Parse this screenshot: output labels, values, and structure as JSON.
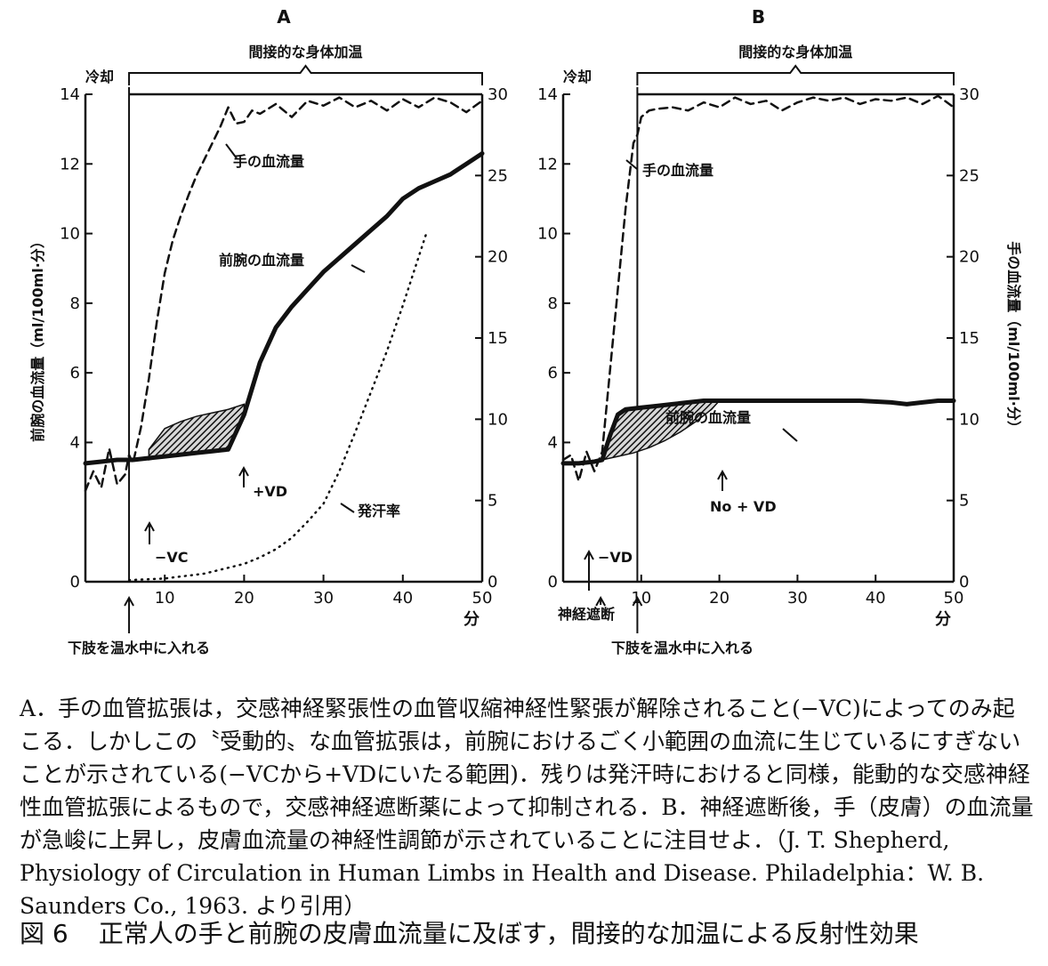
{
  "chart_data": [
    {
      "type": "line",
      "panel_label": "A",
      "xlabel": "分",
      "ylabel_left": "前腕の血流量（ml/100ml·分）",
      "xlim": [
        0,
        50
      ],
      "ylim_left": [
        0,
        14
      ],
      "ylim_right": [
        0,
        30
      ],
      "x_ticks": [
        10,
        20,
        30,
        40,
        50
      ],
      "y_ticks_left": [
        0,
        4,
        6,
        8,
        10,
        12,
        14
      ],
      "y_ticks_right": [
        0,
        5,
        10,
        15,
        20,
        25,
        30
      ],
      "grid": false,
      "top_annotations": {
        "cooling": "冷却",
        "heating": "間接的な身体加温"
      },
      "bottom_annotation": "下肢を温水中に入れる",
      "event_x": 5.5,
      "series": [
        {
          "name": "手の血流量",
          "axis": "right",
          "style": "dashed",
          "x": [
            0,
            1,
            2,
            3,
            4,
            5,
            5.5,
            6,
            7,
            8,
            9,
            10,
            11,
            12,
            13,
            14,
            15,
            16,
            17,
            18,
            19,
            20,
            21,
            22,
            24,
            26,
            28,
            30,
            32,
            34,
            36,
            38,
            40,
            42,
            44,
            46,
            48,
            50
          ],
          "y": [
            5.6,
            6.8,
            5.8,
            8.2,
            6.0,
            6.6,
            7.8,
            7.3,
            9.5,
            12.5,
            16,
            19,
            21,
            22.5,
            23.8,
            25,
            26,
            27,
            28,
            29.2,
            28.2,
            28.3,
            29,
            28.8,
            29.4,
            28.6,
            29.6,
            29.3,
            29.8,
            29.2,
            29.6,
            29.0,
            29.7,
            29.2,
            29.8,
            29.5,
            28.9,
            29.6
          ]
        },
        {
          "name": "前腕の血流量",
          "axis": "left",
          "style": "solid",
          "x": [
            0,
            2,
            4,
            6,
            8,
            10,
            12,
            14,
            16,
            18,
            20,
            22,
            24,
            26,
            28,
            30,
            32,
            34,
            36,
            38,
            40,
            42,
            44,
            46,
            48,
            50
          ],
          "y": [
            3.4,
            3.45,
            3.5,
            3.5,
            3.55,
            3.6,
            3.65,
            3.7,
            3.75,
            3.8,
            4.8,
            6.3,
            7.3,
            7.9,
            8.4,
            8.9,
            9.3,
            9.7,
            10.1,
            10.5,
            11.0,
            11.3,
            11.5,
            11.7,
            12.0,
            12.3
          ]
        },
        {
          "name": "発汗率",
          "axis": "right",
          "style": "dotted",
          "x": [
            5.5,
            10,
            15,
            20,
            22,
            24,
            26,
            28,
            30,
            32,
            34,
            36,
            38,
            40,
            42,
            43
          ],
          "y": [
            0.1,
            0.2,
            0.5,
            1.1,
            1.5,
            2.0,
            2.7,
            3.7,
            4.8,
            6.8,
            9.2,
            11.7,
            14.2,
            17,
            20,
            21.5
          ]
        }
      ],
      "shaded_band": {
        "label_start": "−VC",
        "label_end": "+VD",
        "x": [
          8,
          10,
          12,
          14,
          16,
          18,
          20
        ],
        "upper": [
          3.8,
          4.4,
          4.6,
          4.75,
          4.85,
          4.95,
          5.1
        ],
        "lower": [
          3.5,
          3.6,
          3.65,
          3.7,
          3.75,
          3.8,
          4.8
        ]
      },
      "annotations": [
        {
          "text": "手の血流量"
        },
        {
          "text": "前腕の血流量"
        },
        {
          "text": "発汗率"
        },
        {
          "text": "+VD"
        },
        {
          "text": "−VC"
        }
      ]
    },
    {
      "type": "line",
      "panel_label": "B",
      "xlabel": "分",
      "ylabel_right": "手の血流量（ml/100ml·分）",
      "xlim": [
        0,
        50
      ],
      "ylim_left": [
        0,
        14
      ],
      "ylim_right": [
        0,
        30
      ],
      "x_ticks": [
        10,
        20,
        30,
        40,
        50
      ],
      "y_ticks_left": [
        0,
        4,
        6,
        8,
        10,
        12,
        14
      ],
      "y_ticks_right": [
        0,
        5,
        10,
        15,
        20,
        25,
        30
      ],
      "grid": false,
      "top_annotations": {
        "cooling": "冷却",
        "heating": "間接的な身体加温"
      },
      "bottom_annotation": "下肢を温水中に入れる",
      "bottom_annotation_2": "神経遮断",
      "event_x": 9.5,
      "series": [
        {
          "name": "手の血流量",
          "axis": "right",
          "style": "dashed",
          "x": [
            0,
            1,
            2,
            3,
            4,
            5,
            6,
            7,
            8,
            9,
            9.5,
            10,
            11,
            12,
            14,
            16,
            18,
            20,
            22,
            24,
            26,
            28,
            30,
            32,
            34,
            36,
            38,
            40,
            42,
            44,
            46,
            48,
            50
          ],
          "y": [
            7.5,
            7.8,
            6.2,
            8.0,
            6.8,
            8.0,
            13,
            18,
            23,
            27,
            27.5,
            28.6,
            29,
            29.1,
            29.2,
            29.0,
            29.5,
            29.2,
            29.8,
            29.4,
            29.6,
            29.0,
            29.5,
            29.8,
            29.6,
            29.8,
            29.4,
            29.7,
            29.6,
            29.8,
            29.4,
            29.9,
            29.2
          ]
        },
        {
          "name": "前腕の血流量",
          "axis": "left",
          "style": "solid",
          "x": [
            0,
            2,
            4,
            5,
            6,
            7,
            8,
            10,
            12,
            14,
            16,
            18,
            20,
            22,
            26,
            30,
            34,
            38,
            42,
            44,
            46,
            48,
            50
          ],
          "y": [
            3.4,
            3.4,
            3.45,
            3.5,
            4.2,
            4.8,
            4.95,
            5.0,
            5.05,
            5.1,
            5.15,
            5.2,
            5.2,
            5.2,
            5.2,
            5.2,
            5.2,
            5.2,
            5.15,
            5.1,
            5.15,
            5.2,
            5.2
          ]
        }
      ],
      "shaded_band": {
        "label_start": "−VD",
        "label_end": "No + VD",
        "x": [
          5,
          7,
          9,
          11,
          13,
          15,
          17,
          19,
          20
        ],
        "upper": [
          3.5,
          4.8,
          4.98,
          5.03,
          5.08,
          5.12,
          5.16,
          5.2,
          5.2
        ],
        "lower": [
          3.5,
          3.6,
          3.7,
          3.85,
          4.05,
          4.3,
          4.6,
          4.95,
          5.2
        ]
      },
      "annotations": [
        {
          "text": "手の血流量"
        },
        {
          "text": "前腕の血流量"
        },
        {
          "text": "No + VD"
        },
        {
          "text": "−VD"
        }
      ]
    }
  ],
  "caption": "A．手の血管拡張は，交感神経緊張性の血管収縮神経性緊張が解除されること(−VC)によってのみ起こる．しかしこの〝受動的〟な血管拡張は，前腕におけるごく小範囲の血流に生じているにすぎないことが示されている(−VCから+VDにいたる範囲)．残りは発汗時におけると同様，能動的な交感神経性血管拡張によるもので，交感神経遮断薬によって抑制される．B．神経遮断後，手（皮膚）の血流量が急峻に上昇し，皮膚血流量の神経性調節が示されていることに注目せよ．（J. T. Shepherd, Physiology of Circulation in Human Limbs in Health and Disease. Philadelphia：W. B. Saunders Co., 1963. より引用）",
  "figure_title": {
    "number": "図 6",
    "text": "正常人の手と前腕の皮膚血流量に及ぼす，間接的な加温による反射性効果"
  }
}
